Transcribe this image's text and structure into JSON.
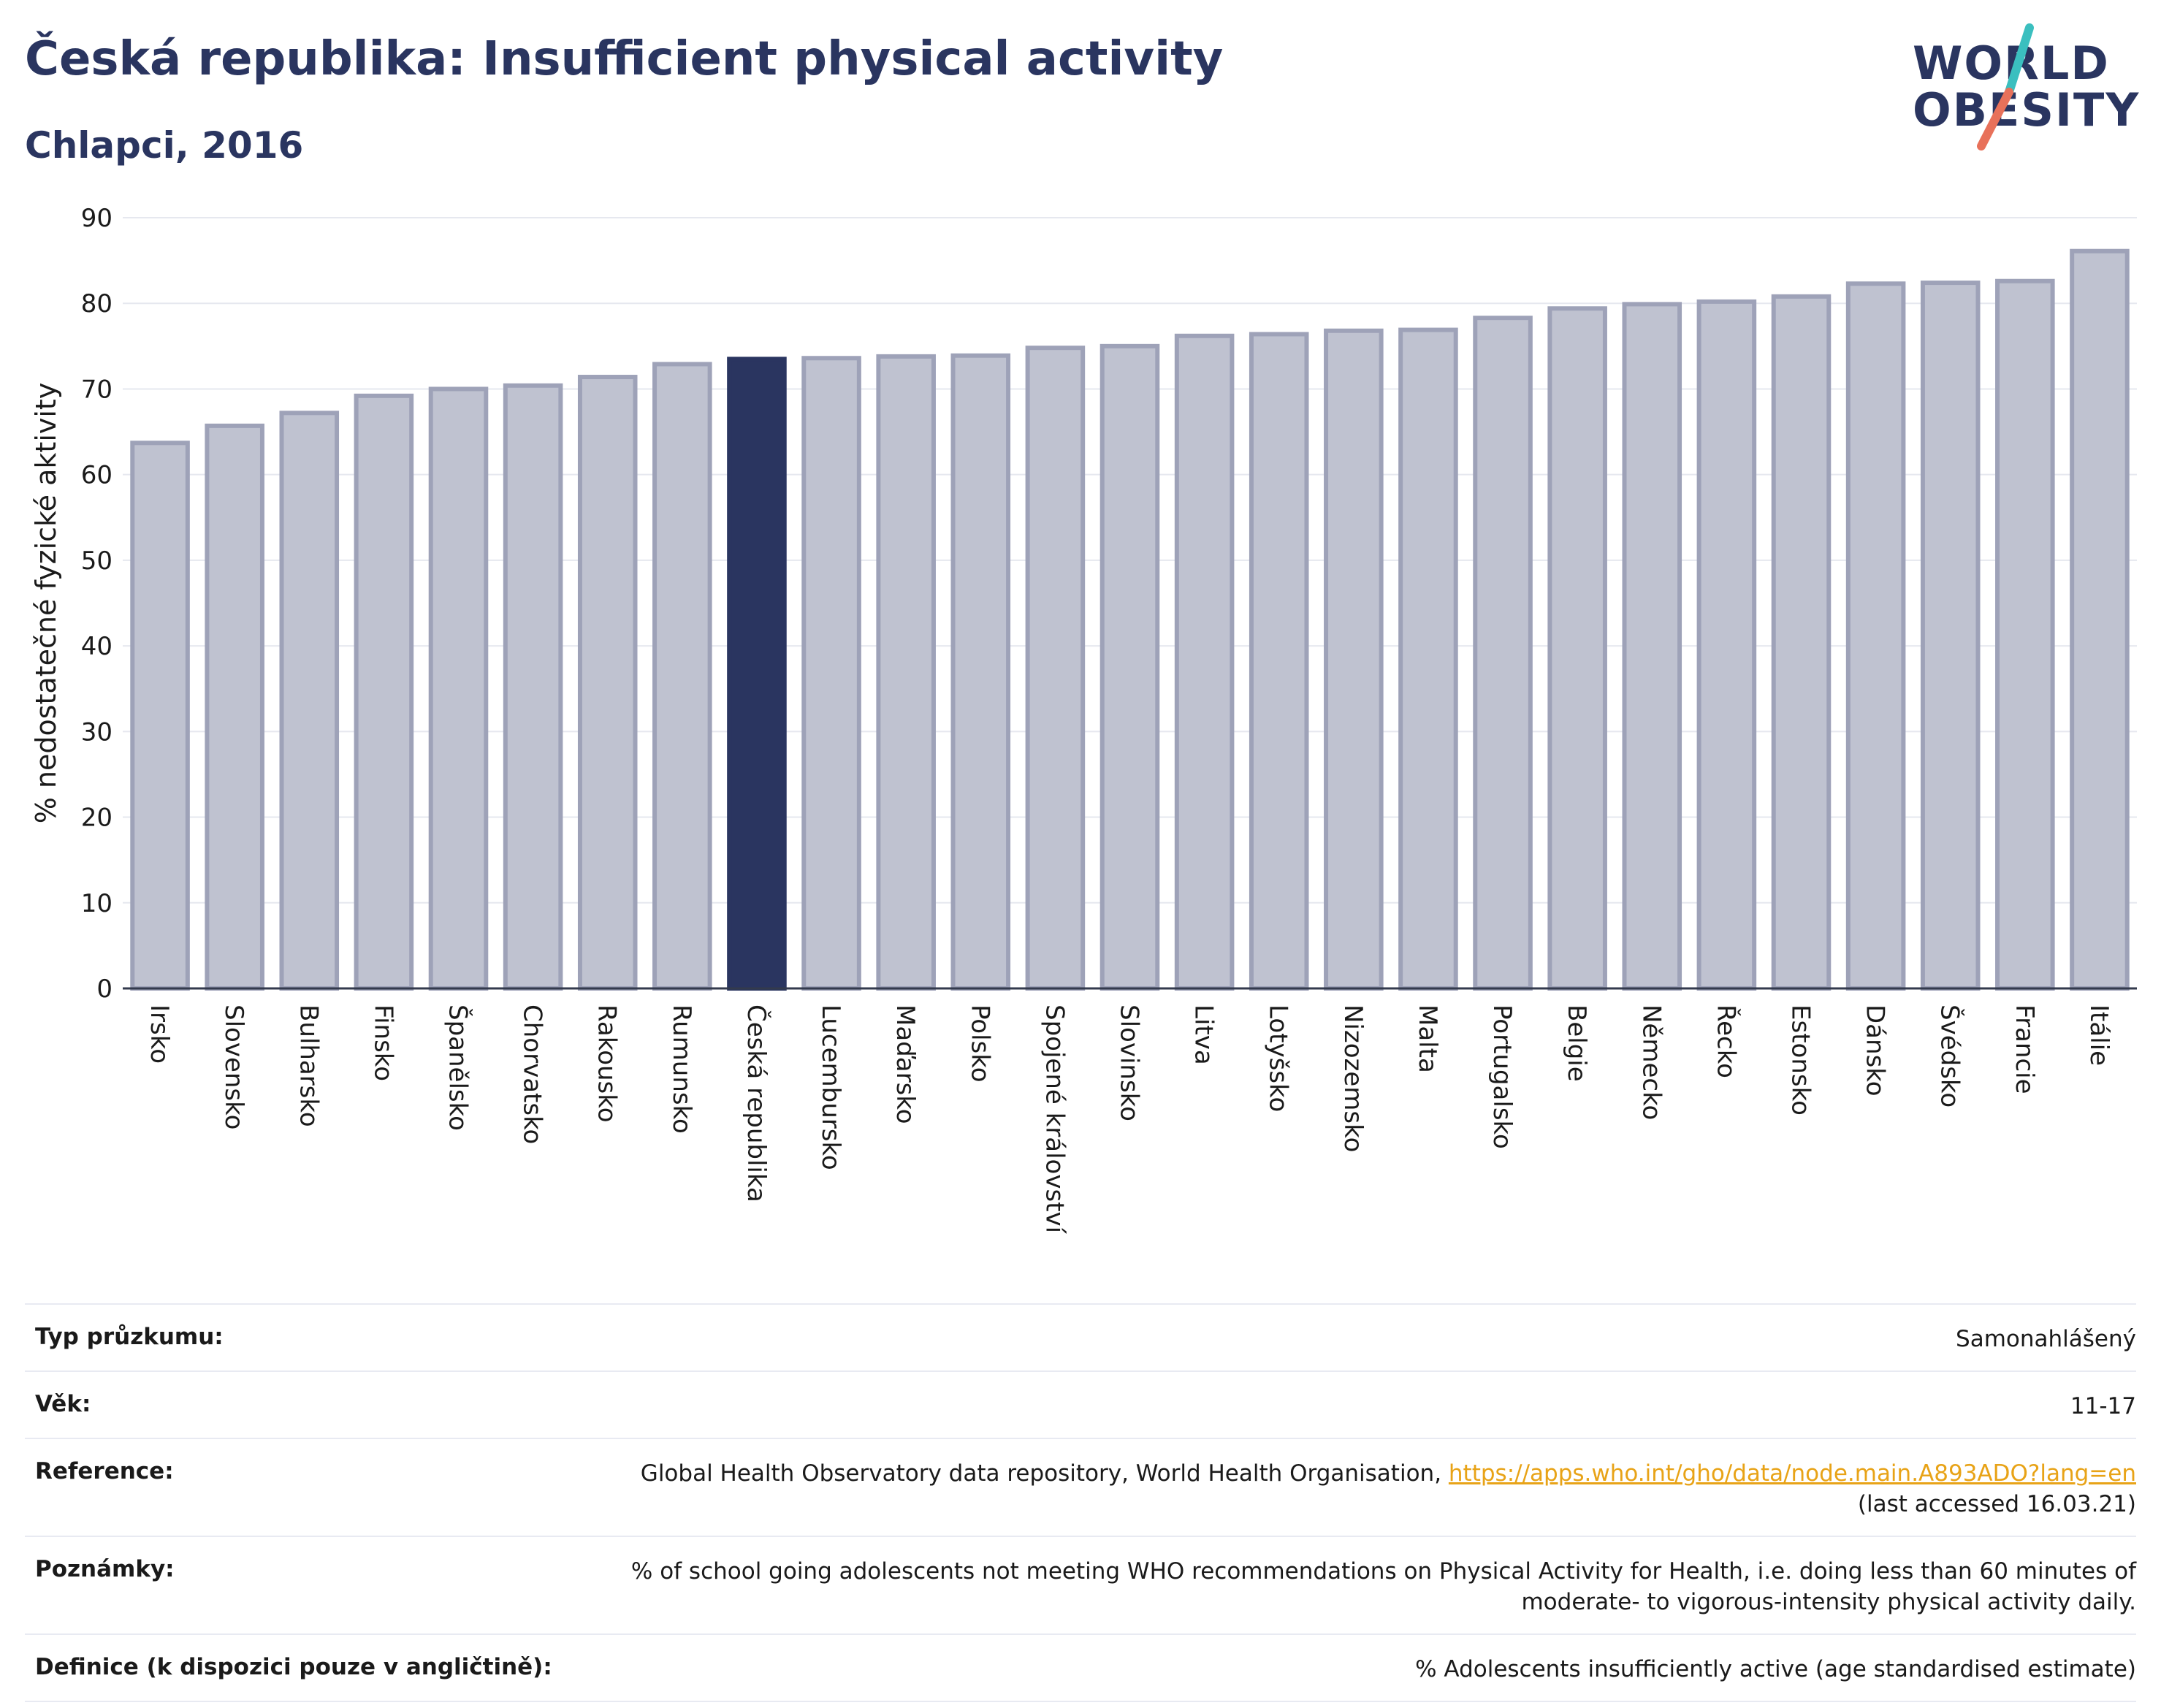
{
  "header": {
    "title": "Česká republika: Insufficient physical activity",
    "subtitle": "Chlapci, 2016"
  },
  "logo": {
    "line1": "WORLD",
    "line2": "OBESITY",
    "colors": {
      "text": "#2a3560",
      "slash_top": "#3bbfbf",
      "slash_bottom": "#e8715a"
    }
  },
  "chart_data": {
    "type": "bar",
    "title": "Česká republika: Insufficient physical activity",
    "subtitle": "Chlapci, 2016",
    "xlabel": "",
    "ylabel": "% nedostatečné fyzické aktivity",
    "ylim": [
      0,
      90
    ],
    "yticks": [
      0,
      10,
      20,
      30,
      40,
      50,
      60,
      70,
      80,
      90
    ],
    "grid": true,
    "highlight": "Česká republika",
    "colors": {
      "bar": "#bfc2d0",
      "bar_edge": "#9ea2b8",
      "highlight": "#2a3560"
    },
    "categories": [
      "Irsko",
      "Slovensko",
      "Bulharsko",
      "Finsko",
      "Španělsko",
      "Chorvatsko",
      "Rakousko",
      "Rumunsko",
      "Česká republika",
      "Lucembursko",
      "Maďarsko",
      "Polsko",
      "Spojené království",
      "Slovinsko",
      "Litva",
      "Lotyšsko",
      "Nizozemsko",
      "Malta",
      "Portugalsko",
      "Belgie",
      "Německo",
      "Řecko",
      "Estonsko",
      "Dánsko",
      "Švédsko",
      "Francie",
      "Itálie"
    ],
    "values": [
      63.7,
      65.7,
      67.2,
      69.2,
      70.0,
      70.4,
      71.4,
      72.9,
      73.5,
      73.6,
      73.8,
      73.9,
      74.8,
      75.0,
      76.2,
      76.4,
      76.8,
      76.9,
      78.3,
      79.4,
      79.9,
      80.2,
      80.8,
      82.3,
      82.4,
      82.6,
      86.1
    ]
  },
  "info": [
    {
      "label": "Typ průzkumu:",
      "value": "Samonahlášený"
    },
    {
      "label": "Věk:",
      "value": "11-17"
    },
    {
      "label": "Reference:",
      "value": "Global Health Observatory data repository, World Health Organisation, ",
      "link": "https://apps.who.int/gho/data/node.main.A893ADO?lang=en",
      "value2": "(last accessed 16.03.21)"
    },
    {
      "label": "Poznámky:",
      "value": "% of school going adolescents not meeting WHO recommendations on Physical Activity for Health, i.e. doing less than 60 minutes of",
      "value2": "moderate- to vigorous-intensity physical activity daily."
    },
    {
      "label": "Definice (k dispozici pouze v angličtině):",
      "value": "% Adolescents insufficiently active (age standardised estimate)"
    }
  ]
}
